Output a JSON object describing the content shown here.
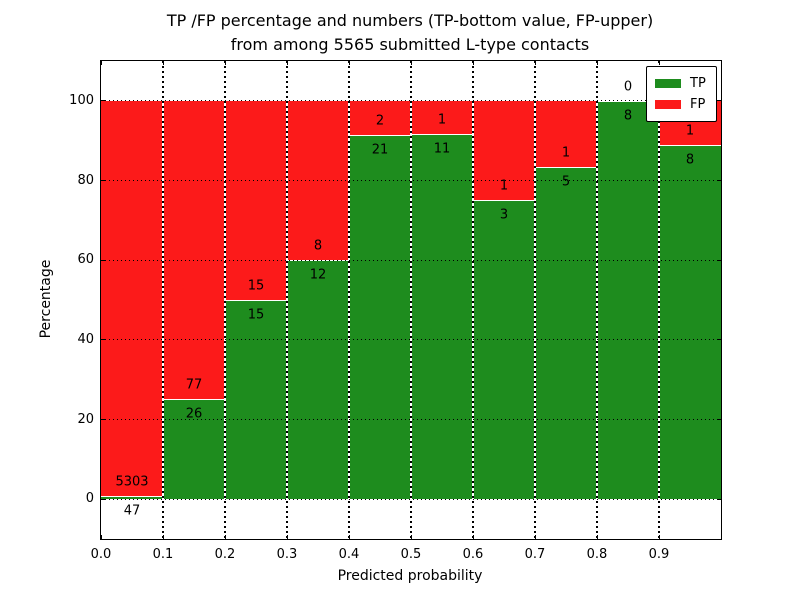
{
  "title": {
    "line1": "TP /FP percentage and numbers (TP-bottom value, FP-upper)",
    "line2": "from among 5565 submitted L-type contacts"
  },
  "axes": {
    "xlabel": "Predicted probability",
    "ylabel": "Percentage"
  },
  "legend": {
    "position": "upper right",
    "entries": [
      {
        "label": "TP",
        "color": "#1e8c1e"
      },
      {
        "label": "FP",
        "color": "#fc1a1a"
      }
    ]
  },
  "chart_data": {
    "type": "bar",
    "stacked": true,
    "normalized_to_percent": true,
    "title": "TP /FP percentage and numbers (TP-bottom value, FP-upper) from among 5565 submitted L-type contacts",
    "xlabel": "Predicted probability",
    "ylabel": "Percentage",
    "total_contacts": 5565,
    "bin_edges": [
      0.0,
      0.1,
      0.2,
      0.3,
      0.4,
      0.5,
      0.6,
      0.7,
      0.8,
      0.9,
      1.0
    ],
    "categories": [
      "0.0-0.1",
      "0.1-0.2",
      "0.2-0.3",
      "0.3-0.4",
      "0.4-0.5",
      "0.5-0.6",
      "0.6-0.7",
      "0.7-0.8",
      "0.8-0.9",
      "0.9-1.0"
    ],
    "series": [
      {
        "name": "TP",
        "color": "#1e8c1e",
        "counts": [
          47,
          26,
          15,
          12,
          21,
          11,
          3,
          5,
          8,
          8
        ]
      },
      {
        "name": "FP",
        "color": "#fc1a1a",
        "counts": [
          5303,
          77,
          15,
          8,
          2,
          1,
          1,
          1,
          0,
          1
        ]
      }
    ],
    "tp_percent": [
      0.88,
      25.24,
      50.0,
      60.0,
      91.3,
      91.67,
      75.0,
      83.33,
      100.0,
      88.89
    ],
    "xlim": [
      0.0,
      1.0
    ],
    "ylim": [
      -10,
      110
    ],
    "xtick_values": [
      0.0,
      0.1,
      0.2,
      0.3,
      0.4,
      0.5,
      0.6,
      0.7,
      0.8,
      0.9
    ],
    "xtick_labels": [
      "0.0",
      "0.1",
      "0.2",
      "0.3",
      "0.4",
      "0.5",
      "0.6",
      "0.7",
      "0.8",
      "0.9"
    ],
    "ytick_values": [
      0,
      20,
      40,
      60,
      80,
      100
    ],
    "ytick_labels": [
      "0",
      "20",
      "40",
      "60",
      "80",
      "100"
    ],
    "grid": true,
    "bar_edge_color": "#ffffff"
  }
}
